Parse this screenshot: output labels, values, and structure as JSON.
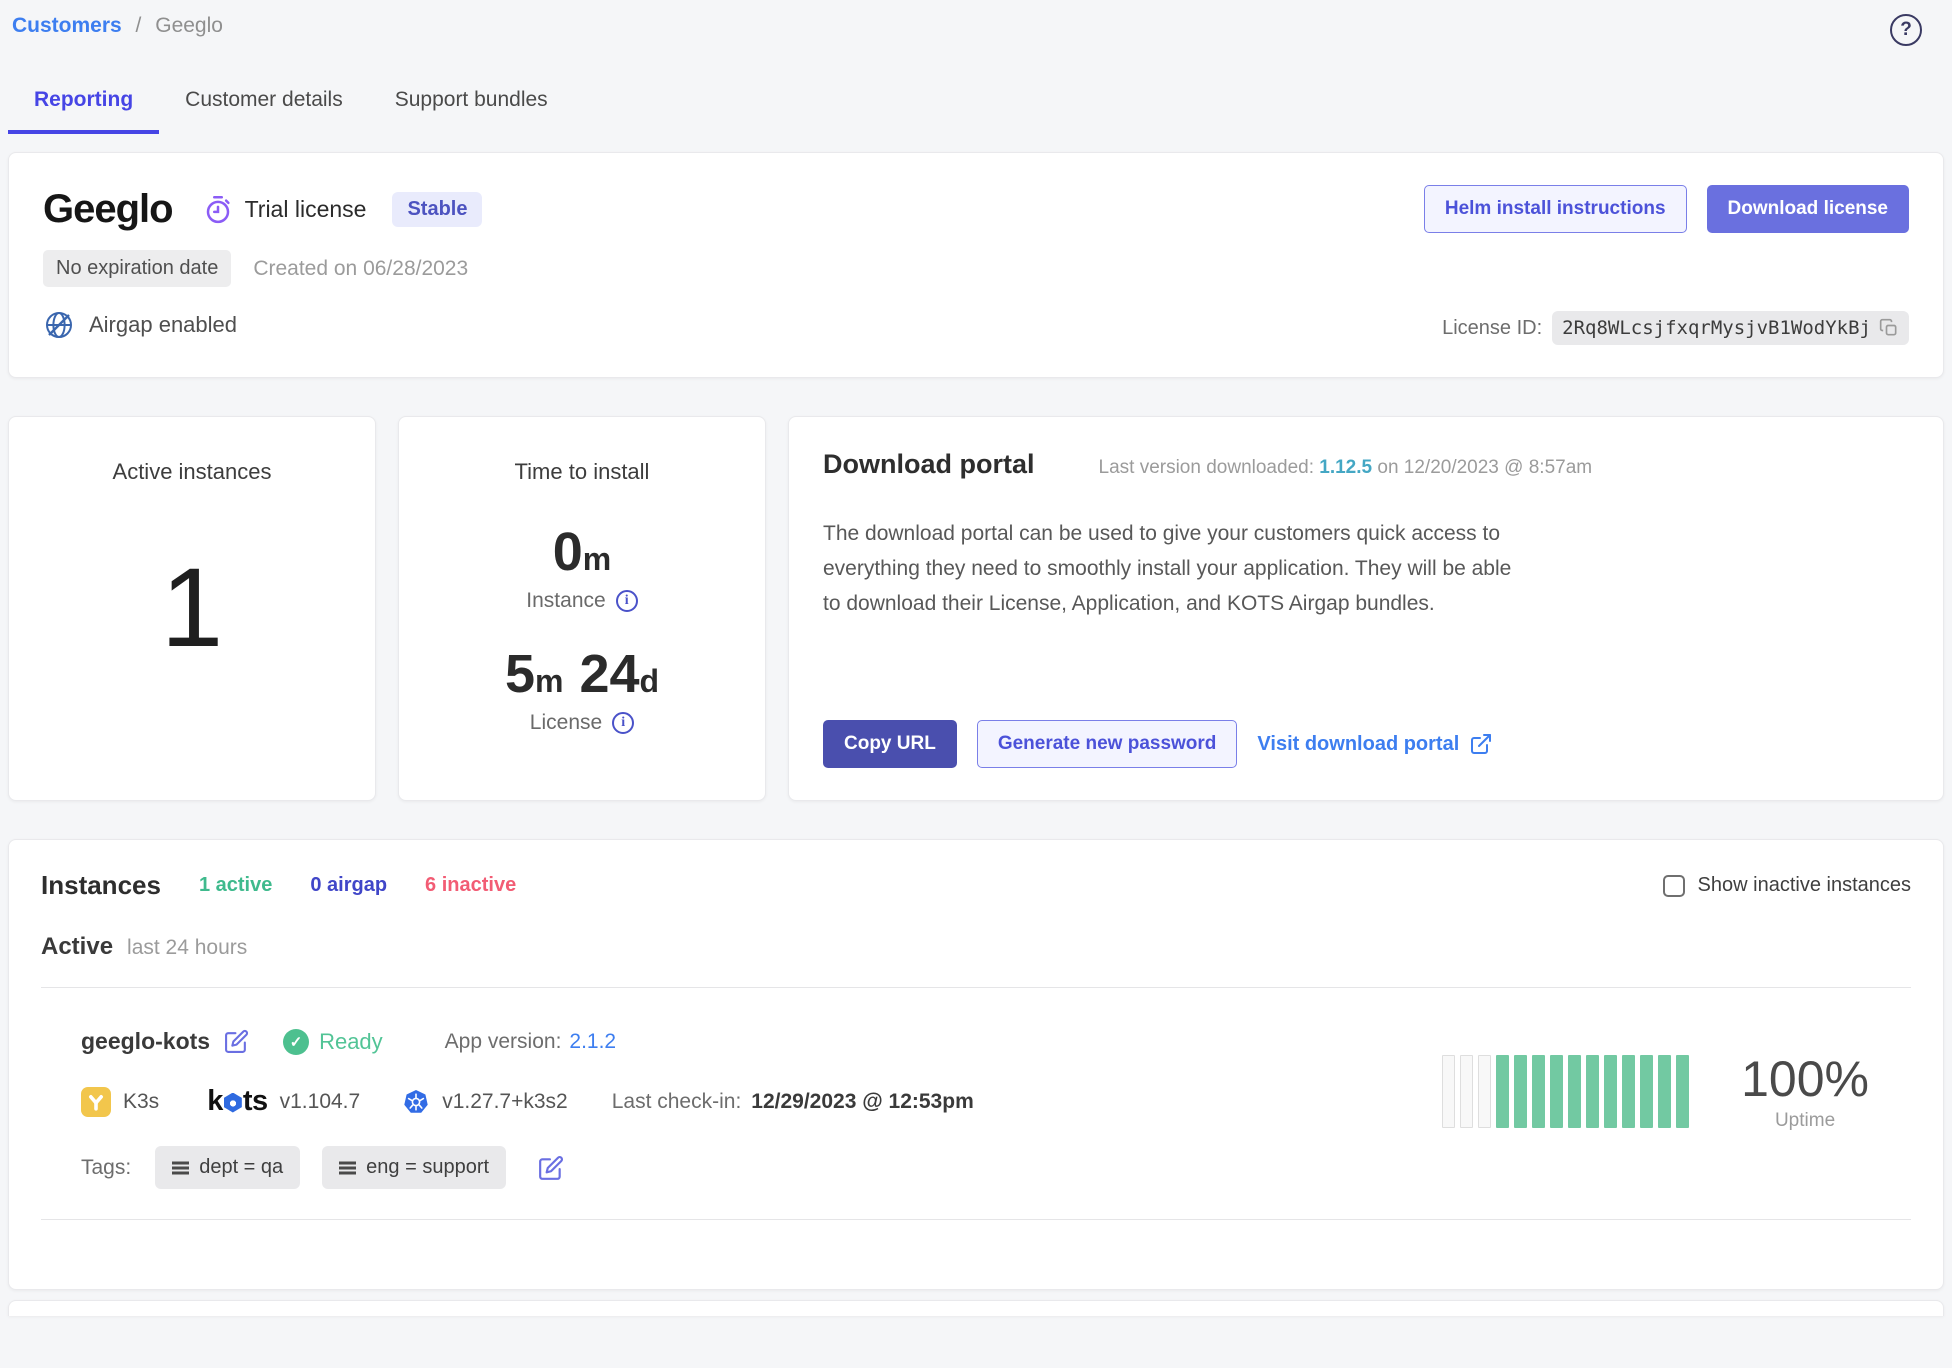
{
  "breadcrumb": {
    "link": "Customers",
    "separator": "/",
    "current": "Geeglo"
  },
  "tabs": [
    {
      "label": "Reporting",
      "active": true
    },
    {
      "label": "Customer details",
      "active": false
    },
    {
      "label": "Support bundles",
      "active": false
    }
  ],
  "icons": {
    "help": "?",
    "check": "✓",
    "info": "i"
  },
  "license_card": {
    "name": "Geeglo",
    "license_type": "Trial license",
    "channel_badge": "Stable",
    "expiration_badge": "No expiration date",
    "created": "Created on 06/28/2023",
    "airgap": "Airgap enabled",
    "helm_button": "Helm install instructions",
    "download_button": "Download license",
    "license_id_label": "License ID:",
    "license_id": "2Rq8WLcsjfxqrMysjvB1WodYkBj"
  },
  "stats": {
    "active_instances": {
      "title": "Active instances",
      "value": "1"
    },
    "time_to_install": {
      "title": "Time to install",
      "instance_value": "0",
      "instance_unit": "m",
      "instance_label": "Instance",
      "license_value_1": "5",
      "license_unit_1": "m",
      "license_value_2": "24",
      "license_unit_2": "d",
      "license_label": "License"
    }
  },
  "download_portal": {
    "title": "Download portal",
    "last_version_prefix": "Last version downloaded: ",
    "last_version": "1.12.5",
    "last_version_suffix": " on 12/20/2023 @ 8:57am",
    "description": "The download portal can be used to give your customers quick access to everything they need to smoothly install your application. They will be able to download their License, Application, and KOTS Airgap bundles.",
    "copy_url_button": "Copy URL",
    "generate_password_button": "Generate new password",
    "visit_portal_link": "Visit download portal"
  },
  "instances": {
    "title": "Instances",
    "active_count": "1 active",
    "airgap_count": "0 airgap",
    "inactive_count": "6 inactive",
    "show_inactive_label": "Show inactive instances",
    "section_label": "Active",
    "section_sublabel": "last 24 hours",
    "row": {
      "name": "geeglo-kots",
      "status": "Ready",
      "app_version_label": "App version:",
      "app_version": "2.1.2",
      "distribution": "K3s",
      "kots_wordmark_k": "k",
      "kots_wordmark_ts": "ts",
      "kots_version": "v1.104.7",
      "k8s_version": "v1.27.7+k3s2",
      "last_checkin_label": "Last check-in:",
      "last_checkin": "12/29/2023 @ 12:53pm",
      "uptime_value": "100%",
      "uptime_label": "Uptime",
      "uptime_bars": [
        "empty",
        "empty",
        "empty",
        "up",
        "up",
        "up",
        "up",
        "up",
        "up",
        "up",
        "up",
        "up",
        "up",
        "up"
      ],
      "tags_label": "Tags:",
      "tags": [
        "dept = qa",
        "eng = support"
      ]
    }
  },
  "colors": {
    "accent_indigo": "#4645e5",
    "button_indigo": "#6a70df",
    "button_dark_indigo": "#4a4fae",
    "link_blue": "#3d7ef0",
    "version_teal": "#44a7c4",
    "active_green": "#3fba8d",
    "uptime_green": "#72c9a2",
    "airgap_indigo": "#4046c8",
    "inactive_pink": "#f25c74",
    "timer_purple": "#8b5cf6",
    "page_background": "#f5f6f8"
  }
}
